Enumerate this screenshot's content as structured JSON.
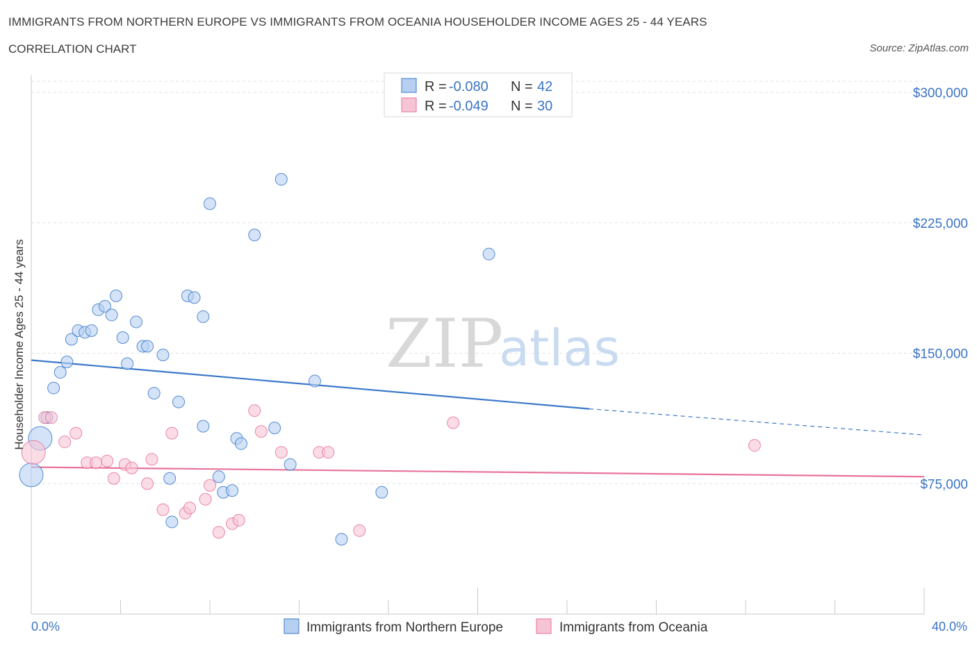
{
  "header": {
    "title": "IMMIGRANTS FROM NORTHERN EUROPE VS IMMIGRANTS FROM OCEANIA HOUSEHOLDER INCOME AGES 25 - 44 YEARS",
    "subtitle": "CORRELATION CHART",
    "source": "Source: ZipAtlas.com"
  },
  "watermark": {
    "zip": "ZIP",
    "atlas": "atlas"
  },
  "colors": {
    "blue": "#3a78c9",
    "blue_fill": "#b7d0f1",
    "pink": "#e8729b",
    "pink_fill": "#f6c4d5",
    "tick_text": "#3a73c4",
    "grid": "#dcdcdc"
  },
  "legend": {
    "rows": [
      {
        "r_label": "R =",
        "r_value": "-0.080",
        "n_label": "N =",
        "n_value": "42"
      },
      {
        "r_label": "R =",
        "r_value": "-0.049",
        "n_label": "N =",
        "n_value": "30"
      }
    ]
  },
  "chart_data": {
    "type": "scatter",
    "title": "IMMIGRANTS FROM NORTHERN EUROPE VS IMMIGRANTS FROM OCEANIA HOUSEHOLDER INCOME AGES 25 - 44 YEARS",
    "xlabel": "",
    "ylabel": "Householder Income Ages 25 - 44 years",
    "xlim": [
      0,
      40
    ],
    "ylim": [
      0,
      300000
    ],
    "x_tick_labels": [
      "0.0%",
      "40.0%"
    ],
    "y_ticks": [
      75000,
      150000,
      225000,
      300000
    ],
    "y_tick_labels": [
      "$75,000",
      "$150,000",
      "$225,000",
      "$300,000"
    ],
    "grid": true,
    "series": [
      {
        "name": "Immigrants from Northern Europe",
        "color": "#3a78c9",
        "R": -0.08,
        "N": 42,
        "trend": {
          "x0": 0,
          "y0": 146000,
          "x1": 25,
          "y1": 118000,
          "x_dash_end": 40,
          "y_dash_end": 103000
        },
        "points": [
          {
            "x": 0.0,
            "y": 80000,
            "big": true
          },
          {
            "x": 0.4,
            "y": 101000,
            "big": true
          },
          {
            "x": 0.7,
            "y": 113000
          },
          {
            "x": 1.0,
            "y": 130000
          },
          {
            "x": 1.3,
            "y": 139000
          },
          {
            "x": 1.6,
            "y": 145000
          },
          {
            "x": 1.8,
            "y": 158000
          },
          {
            "x": 2.1,
            "y": 163000
          },
          {
            "x": 2.4,
            "y": 162000
          },
          {
            "x": 2.7,
            "y": 163000
          },
          {
            "x": 3.0,
            "y": 175000
          },
          {
            "x": 3.3,
            "y": 177000
          },
          {
            "x": 3.6,
            "y": 172000
          },
          {
            "x": 3.8,
            "y": 183000
          },
          {
            "x": 4.1,
            "y": 159000
          },
          {
            "x": 4.3,
            "y": 144000
          },
          {
            "x": 4.7,
            "y": 168000
          },
          {
            "x": 5.0,
            "y": 154000
          },
          {
            "x": 5.2,
            "y": 154000
          },
          {
            "x": 5.5,
            "y": 127000
          },
          {
            "x": 5.9,
            "y": 149000
          },
          {
            "x": 6.2,
            "y": 78000
          },
          {
            "x": 6.3,
            "y": 53000
          },
          {
            "x": 6.6,
            "y": 122000
          },
          {
            "x": 7.0,
            "y": 183000
          },
          {
            "x": 7.3,
            "y": 182000
          },
          {
            "x": 7.7,
            "y": 171000
          },
          {
            "x": 7.7,
            "y": 108000
          },
          {
            "x": 8.0,
            "y": 236000
          },
          {
            "x": 8.4,
            "y": 79000
          },
          {
            "x": 8.6,
            "y": 70000
          },
          {
            "x": 9.0,
            "y": 71000
          },
          {
            "x": 9.2,
            "y": 101000
          },
          {
            "x": 9.4,
            "y": 98000
          },
          {
            "x": 10.0,
            "y": 218000
          },
          {
            "x": 10.9,
            "y": 107000
          },
          {
            "x": 11.2,
            "y": 250000
          },
          {
            "x": 11.6,
            "y": 86000
          },
          {
            "x": 12.7,
            "y": 134000
          },
          {
            "x": 13.9,
            "y": 43000
          },
          {
            "x": 15.7,
            "y": 70000
          },
          {
            "x": 20.5,
            "y": 207000
          }
        ]
      },
      {
        "name": "Immigrants from Oceania",
        "color": "#e8729b",
        "R": -0.049,
        "N": 30,
        "trend": {
          "x0": 0,
          "y0": 84500,
          "x1": 40,
          "y1": 79000
        },
        "points": [
          {
            "x": 0.1,
            "y": 93000,
            "big": true
          },
          {
            "x": 0.6,
            "y": 113000
          },
          {
            "x": 0.9,
            "y": 113000
          },
          {
            "x": 1.5,
            "y": 99000
          },
          {
            "x": 2.0,
            "y": 104000
          },
          {
            "x": 2.5,
            "y": 87000
          },
          {
            "x": 2.9,
            "y": 87000
          },
          {
            "x": 3.4,
            "y": 88000
          },
          {
            "x": 3.7,
            "y": 78000
          },
          {
            "x": 4.2,
            "y": 86000
          },
          {
            "x": 4.5,
            "y": 84000
          },
          {
            "x": 5.2,
            "y": 75000
          },
          {
            "x": 5.4,
            "y": 89000
          },
          {
            "x": 5.9,
            "y": 60000
          },
          {
            "x": 6.3,
            "y": 104000
          },
          {
            "x": 6.9,
            "y": 58000
          },
          {
            "x": 7.1,
            "y": 61000
          },
          {
            "x": 7.8,
            "y": 66000
          },
          {
            "x": 8.0,
            "y": 74000
          },
          {
            "x": 8.4,
            "y": 47000
          },
          {
            "x": 9.0,
            "y": 52000
          },
          {
            "x": 9.3,
            "y": 54000
          },
          {
            "x": 10.0,
            "y": 117000
          },
          {
            "x": 10.3,
            "y": 105000
          },
          {
            "x": 11.2,
            "y": 93000
          },
          {
            "x": 12.9,
            "y": 93000
          },
          {
            "x": 13.3,
            "y": 93000
          },
          {
            "x": 14.7,
            "y": 48000
          },
          {
            "x": 18.9,
            "y": 110000
          },
          {
            "x": 32.4,
            "y": 97000
          }
        ]
      }
    ]
  }
}
